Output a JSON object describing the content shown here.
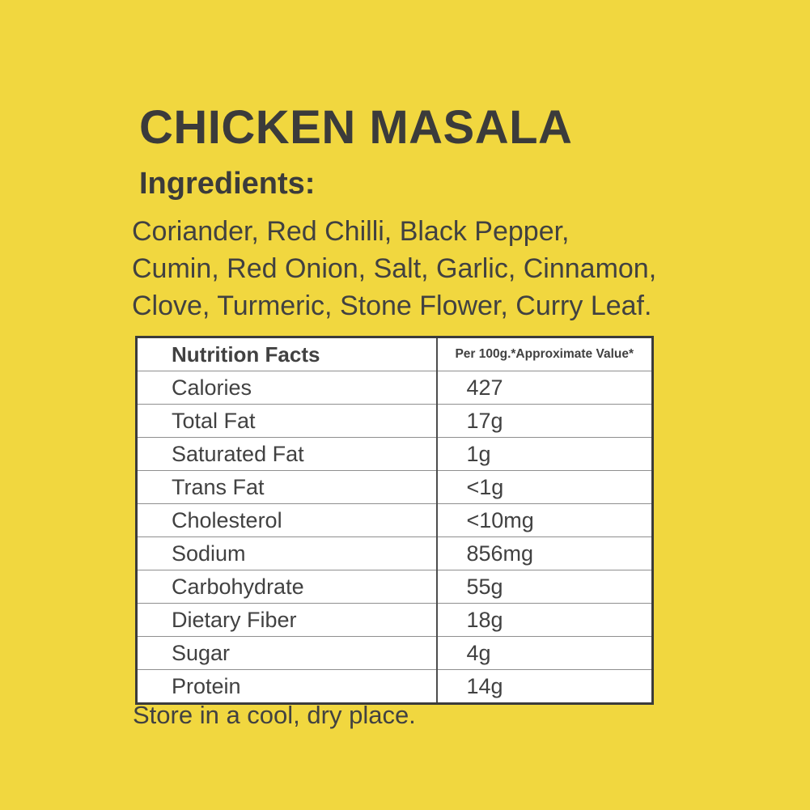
{
  "colors": {
    "background": "#F1D73F",
    "text": "#3B3B3B",
    "table_outer_border": "#3B3B3B",
    "table_inner_line": "#8F8F8F",
    "cell_background": "#FFFFFF"
  },
  "title": "CHICKEN MASALA",
  "ingredients": {
    "heading": "Ingredients:",
    "lines": [
      "Coriander, Red Chilli, Black Pepper,",
      "Cumin, Red Onion, Salt, Garlic, Cinnamon,",
      "Clove, Turmeric, Stone Flower, Curry Leaf."
    ]
  },
  "nutrition_table": {
    "header": {
      "left": "Nutrition Facts",
      "right": "Per 100g.*Approximate Value*"
    },
    "rows": [
      {
        "label": "Calories",
        "value": "427"
      },
      {
        "label": "Total Fat",
        "value": "17g"
      },
      {
        "label": "Saturated Fat",
        "value": "1g"
      },
      {
        "label": "Trans Fat",
        "value": "<1g"
      },
      {
        "label": "Cholesterol",
        "value": "<10mg"
      },
      {
        "label": "Sodium",
        "value": "856mg"
      },
      {
        "label": "Carbohydrate",
        "value": "55g"
      },
      {
        "label": "Dietary Fiber",
        "value": "18g"
      },
      {
        "label": "Sugar",
        "value": "4g"
      },
      {
        "label": "Protein",
        "value": "14g"
      }
    ]
  },
  "storage_note": "Store in a cool, dry place."
}
